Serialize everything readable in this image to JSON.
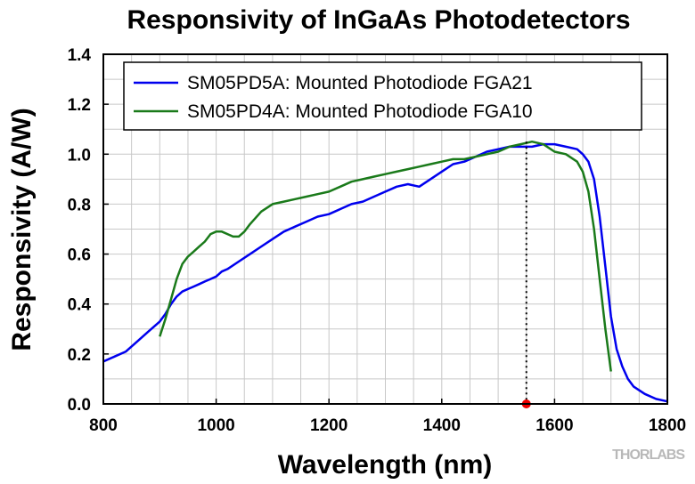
{
  "chart_data": {
    "type": "line",
    "title": "Responsivity of InGaAs Photodetectors",
    "xlabel": "Wavelength (nm)",
    "ylabel": "Responsivity (A/W)",
    "xlim": [
      800,
      1800
    ],
    "ylim": [
      0,
      1.4
    ],
    "xticks": [
      800,
      1000,
      1200,
      1400,
      1600,
      1800
    ],
    "yticks": [
      0.0,
      0.2,
      0.4,
      0.6,
      0.8,
      1.0,
      1.2,
      1.4
    ],
    "xtick_labels": [
      "800",
      "1000",
      "1200",
      "1400",
      "1600",
      "1800"
    ],
    "ytick_labels": [
      "0.0",
      "0.2",
      "0.4",
      "0.6",
      "0.8",
      "1.0",
      "1.2",
      "1.4"
    ],
    "grid": true,
    "legend_position": "top-right",
    "marker_line": {
      "x": 1550
    },
    "series": [
      {
        "name": "SM05PD5A: Mounted Photodiode FGA21",
        "color": "#0000ee",
        "x": [
          800,
          820,
          840,
          860,
          880,
          900,
          910,
          920,
          930,
          940,
          950,
          960,
          970,
          980,
          990,
          1000,
          1010,
          1020,
          1040,
          1060,
          1080,
          1100,
          1120,
          1140,
          1160,
          1180,
          1200,
          1220,
          1240,
          1260,
          1280,
          1300,
          1320,
          1340,
          1360,
          1380,
          1400,
          1420,
          1440,
          1460,
          1480,
          1500,
          1520,
          1540,
          1560,
          1580,
          1600,
          1620,
          1640,
          1650,
          1660,
          1670,
          1680,
          1690,
          1700,
          1710,
          1720,
          1730,
          1740,
          1760,
          1780,
          1800
        ],
        "y": [
          0.17,
          0.19,
          0.21,
          0.25,
          0.29,
          0.33,
          0.36,
          0.4,
          0.43,
          0.45,
          0.46,
          0.47,
          0.48,
          0.49,
          0.5,
          0.51,
          0.53,
          0.54,
          0.57,
          0.6,
          0.63,
          0.66,
          0.69,
          0.71,
          0.73,
          0.75,
          0.76,
          0.78,
          0.8,
          0.81,
          0.83,
          0.85,
          0.87,
          0.88,
          0.87,
          0.9,
          0.93,
          0.96,
          0.97,
          0.99,
          1.01,
          1.02,
          1.03,
          1.03,
          1.03,
          1.04,
          1.04,
          1.03,
          1.02,
          1.0,
          0.97,
          0.9,
          0.75,
          0.55,
          0.35,
          0.22,
          0.15,
          0.1,
          0.07,
          0.04,
          0.02,
          0.01
        ]
      },
      {
        "name": "SM05PD4A: Mounted Photodiode FGA10",
        "color": "#1a7a1a",
        "x": [
          900,
          910,
          920,
          930,
          940,
          950,
          960,
          970,
          980,
          990,
          1000,
          1010,
          1020,
          1030,
          1040,
          1050,
          1060,
          1080,
          1100,
          1120,
          1140,
          1160,
          1180,
          1200,
          1220,
          1240,
          1260,
          1280,
          1300,
          1320,
          1340,
          1360,
          1380,
          1400,
          1420,
          1440,
          1460,
          1480,
          1500,
          1520,
          1540,
          1560,
          1580,
          1600,
          1620,
          1640,
          1650,
          1660,
          1670,
          1680,
          1690,
          1700
        ],
        "y": [
          0.27,
          0.34,
          0.42,
          0.5,
          0.56,
          0.59,
          0.61,
          0.63,
          0.65,
          0.68,
          0.69,
          0.69,
          0.68,
          0.67,
          0.67,
          0.69,
          0.72,
          0.77,
          0.8,
          0.81,
          0.82,
          0.83,
          0.84,
          0.85,
          0.87,
          0.89,
          0.9,
          0.91,
          0.92,
          0.93,
          0.94,
          0.95,
          0.96,
          0.97,
          0.98,
          0.98,
          0.99,
          1.0,
          1.01,
          1.03,
          1.04,
          1.05,
          1.04,
          1.01,
          1.0,
          0.97,
          0.93,
          0.85,
          0.7,
          0.5,
          0.3,
          0.13
        ]
      }
    ]
  },
  "watermark": "THORLABS"
}
